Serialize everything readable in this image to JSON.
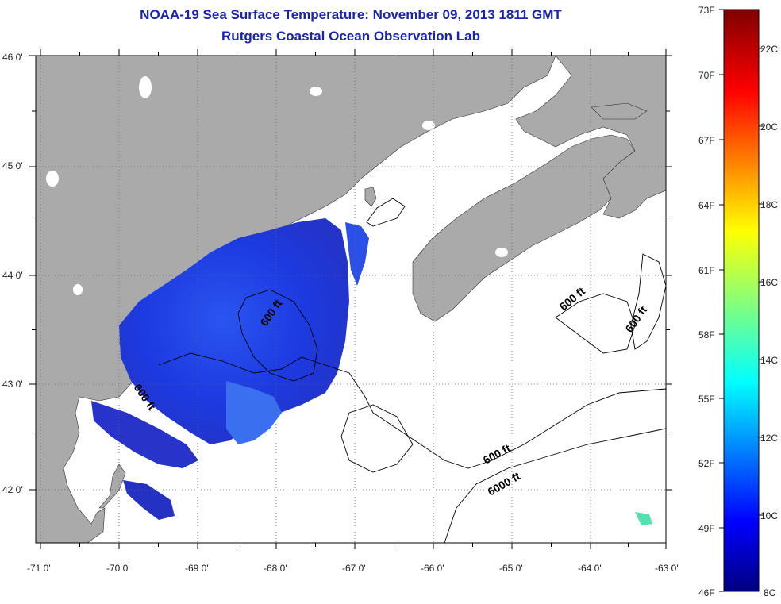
{
  "title": "NOAA-19 Sea Surface Temperature:  November 09, 2013 1811 GMT",
  "subtitle": "Rutgers Coastal Ocean Observation Lab",
  "lat_labels": [
    "46 0'",
    "45 0'",
    "44 0'",
    "43 0'",
    "42 0'"
  ],
  "lon_labels": [
    "-71 0'",
    "-70 0'",
    "-69 0'",
    "-68 0'",
    "-67 0'",
    "-66 0'",
    "-65 0'",
    "-64 0'",
    "-63 0'"
  ],
  "colorbar": {
    "f_labels": [
      "73F",
      "70F",
      "67F",
      "64F",
      "61F",
      "58F",
      "55F",
      "52F",
      "49F",
      "46F"
    ],
    "c_labels": [
      "22C",
      "20C",
      "18C",
      "16C",
      "14C",
      "12C",
      "10C",
      "8C"
    ]
  },
  "contours": {
    "label_600_a": "600 ft",
    "label_600_b": "600 ft",
    "label_600_c": "600 ft",
    "label_600_d": "600 ft",
    "label_600_e": "600 ft",
    "label_6000": "6000 ft"
  },
  "colors": {
    "land": "#aaaaaa",
    "ocean": "#ffffff",
    "sst_blue": "#1e3ce6",
    "title": "#1a22b0"
  }
}
